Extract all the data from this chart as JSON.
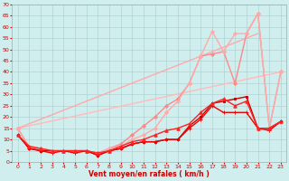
{
  "background_color": "#d0eeee",
  "grid_color": "#aacccc",
  "xlabel": "Vent moyen/en rafales ( km/h )",
  "xlim": [
    -0.5,
    23.5
  ],
  "ylim": [
    0,
    70
  ],
  "yticks": [
    0,
    5,
    10,
    15,
    20,
    25,
    30,
    35,
    40,
    45,
    50,
    55,
    60,
    65,
    70
  ],
  "xticks": [
    0,
    1,
    2,
    3,
    4,
    5,
    6,
    7,
    8,
    9,
    10,
    11,
    12,
    13,
    14,
    15,
    16,
    17,
    18,
    19,
    20,
    21,
    22,
    23
  ],
  "series": [
    {
      "x": [
        0,
        23
      ],
      "y": [
        15,
        40
      ],
      "color": "#ffbbbb",
      "lw": 1.0,
      "marker": null
    },
    {
      "x": [
        0,
        21
      ],
      "y": [
        15,
        57
      ],
      "color": "#ffaaaa",
      "lw": 1.0,
      "marker": null
    },
    {
      "x": [
        0,
        1,
        2,
        3,
        4,
        5,
        6,
        7,
        8,
        9,
        10,
        11,
        12,
        13,
        14,
        15,
        16,
        17,
        18,
        19,
        20,
        21,
        22,
        23
      ],
      "y": [
        15,
        6,
        6,
        5,
        5,
        5,
        5,
        4,
        6,
        8,
        12,
        16,
        20,
        25,
        28,
        35,
        47,
        48,
        49,
        35,
        57,
        66,
        15,
        40
      ],
      "color": "#ff8888",
      "lw": 1.0,
      "marker": "D",
      "ms": 2.0
    },
    {
      "x": [
        0,
        1,
        2,
        3,
        4,
        5,
        6,
        7,
        8,
        9,
        10,
        11,
        12,
        13,
        14,
        15,
        16,
        17,
        18,
        19,
        20,
        21,
        22,
        23
      ],
      "y": [
        15,
        7,
        6,
        5,
        5,
        5,
        5,
        4,
        6,
        7,
        10,
        12,
        15,
        22,
        27,
        35,
        47,
        58,
        49,
        57,
        57,
        66,
        15,
        40
      ],
      "color": "#ffaaaa",
      "lw": 1.0,
      "marker": "D",
      "ms": 2.0
    },
    {
      "x": [
        0,
        1,
        2,
        3,
        4,
        5,
        6,
        7,
        8,
        9,
        10,
        11,
        12,
        13,
        14,
        15,
        16,
        17,
        18,
        19,
        20,
        21,
        22,
        23
      ],
      "y": [
        12,
        6,
        5,
        5,
        5,
        5,
        5,
        3,
        5,
        6,
        8,
        9,
        9,
        10,
        10,
        16,
        20,
        26,
        27,
        28,
        29,
        15,
        15,
        18
      ],
      "color": "#cc0000",
      "lw": 1.0,
      "marker": "s",
      "ms": 2.0
    },
    {
      "x": [
        0,
        1,
        2,
        3,
        4,
        5,
        6,
        7,
        8,
        9,
        10,
        11,
        12,
        13,
        14,
        15,
        16,
        17,
        18,
        19,
        20,
        21,
        22,
        23
      ],
      "y": [
        12,
        6,
        5,
        4,
        5,
        4,
        5,
        3,
        5,
        6,
        8,
        9,
        9,
        10,
        10,
        15,
        19,
        25,
        22,
        22,
        22,
        15,
        14,
        18
      ],
      "color": "#ee0000",
      "lw": 1.0,
      "marker": "+",
      "ms": 3.0
    },
    {
      "x": [
        0,
        1,
        2,
        3,
        4,
        5,
        6,
        7,
        8,
        9,
        10,
        11,
        12,
        13,
        14,
        15,
        16,
        17,
        18,
        19,
        20,
        21,
        22,
        23
      ],
      "y": [
        12,
        7,
        6,
        5,
        5,
        5,
        5,
        4,
        5,
        7,
        9,
        10,
        12,
        14,
        15,
        17,
        22,
        26,
        28,
        25,
        27,
        15,
        15,
        18
      ],
      "color": "#ff2222",
      "lw": 1.0,
      "marker": "^",
      "ms": 2.5
    }
  ]
}
